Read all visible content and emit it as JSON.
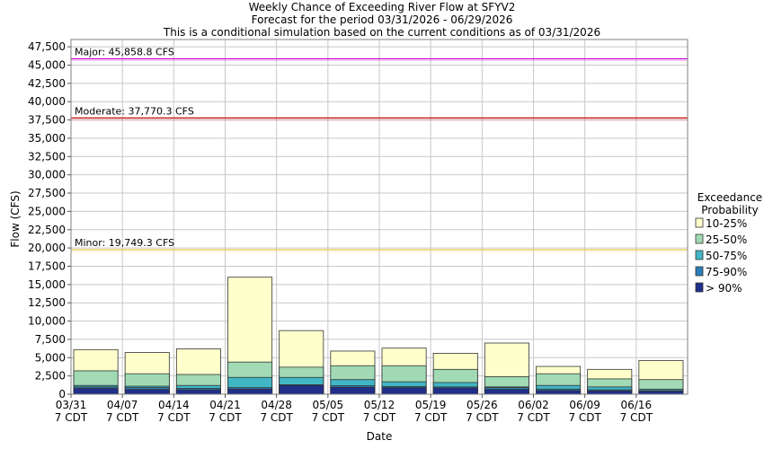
{
  "chart_data": {
    "type": "bar",
    "stacked": true,
    "title": "Weekly Chance of Exceeding River Flow at SFYV2",
    "subtitle1": "Forecast for the period 03/31/2026 - 06/29/2026",
    "subtitle2": "This is a conditional simulation based on the current conditions as of 03/31/2026",
    "xlabel": "Date",
    "ylabel": "Flow (CFS)",
    "ylim": [
      0,
      48500
    ],
    "yticks": [
      0,
      2500,
      5000,
      7500,
      10000,
      12500,
      15000,
      17500,
      20000,
      22500,
      25000,
      27500,
      30000,
      32500,
      35000,
      37500,
      40000,
      42500,
      45000,
      47500
    ],
    "ytick_labels": [
      "0",
      "2,500",
      "5,000",
      "7,500",
      "10,000",
      "12,500",
      "15,000",
      "17,500",
      "20,000",
      "22,500",
      "25,000",
      "27,500",
      "30,000",
      "32,500",
      "35,000",
      "37,500",
      "40,000",
      "42,500",
      "45,000",
      "47,500"
    ],
    "xticks": [
      {
        "line1": "03/31",
        "line2": "7 CDT"
      },
      {
        "line1": "04/07",
        "line2": "7 CDT"
      },
      {
        "line1": "04/14",
        "line2": "7 CDT"
      },
      {
        "line1": "04/21",
        "line2": "7 CDT"
      },
      {
        "line1": "04/28",
        "line2": "7 CDT"
      },
      {
        "line1": "05/05",
        "line2": "7 CDT"
      },
      {
        "line1": "05/12",
        "line2": "7 CDT"
      },
      {
        "line1": "05/19",
        "line2": "7 CDT"
      },
      {
        "line1": "05/26",
        "line2": "7 CDT"
      },
      {
        "line1": "06/02",
        "line2": "7 CDT"
      },
      {
        "line1": "06/09",
        "line2": "7 CDT"
      },
      {
        "line1": "06/16",
        "line2": "7 CDT"
      }
    ],
    "grid": true,
    "legend_position": "right",
    "legend_title_line1": "Exceedance",
    "legend_title_line2": "Probability",
    "series": [
      {
        "name": "> 90%",
        "color": "#1f2f8a",
        "values": [
          800,
          650,
          600,
          700,
          1200,
          950,
          900,
          850,
          650,
          500,
          450,
          400
        ]
      },
      {
        "name": "75-90%",
        "color": "#2c7fb8",
        "values": [
          1000,
          900,
          800,
          900,
          1300,
          1150,
          1050,
          1000,
          900,
          700,
          600,
          500
        ]
      },
      {
        "name": "50-75%",
        "color": "#41b6c4",
        "values": [
          1200,
          1100,
          1200,
          2300,
          2300,
          2000,
          1700,
          1600,
          1000,
          1200,
          1000,
          700
        ]
      },
      {
        "name": "25-50%",
        "color": "#a1dab4",
        "values": [
          3200,
          2800,
          2700,
          4400,
          3700,
          3900,
          3900,
          3400,
          2400,
          2800,
          2100,
          2000
        ]
      },
      {
        "name": "10-25%",
        "color": "#ffffcc",
        "values": [
          6100,
          5700,
          6200,
          16000,
          8700,
          5900,
          6300,
          5600,
          7000,
          3800,
          3400,
          4600
        ]
      }
    ],
    "thresholds": [
      {
        "label": "Major: 45,858.8 CFS",
        "value": 45858.8,
        "color": "#cc00cc"
      },
      {
        "label": "Moderate: 37,770.3 CFS",
        "value": 37770.3,
        "color": "#cc0000"
      },
      {
        "label": "Minor: 19,749.3 CFS",
        "value": 19749.3,
        "color": "#e8c84a"
      }
    ]
  }
}
